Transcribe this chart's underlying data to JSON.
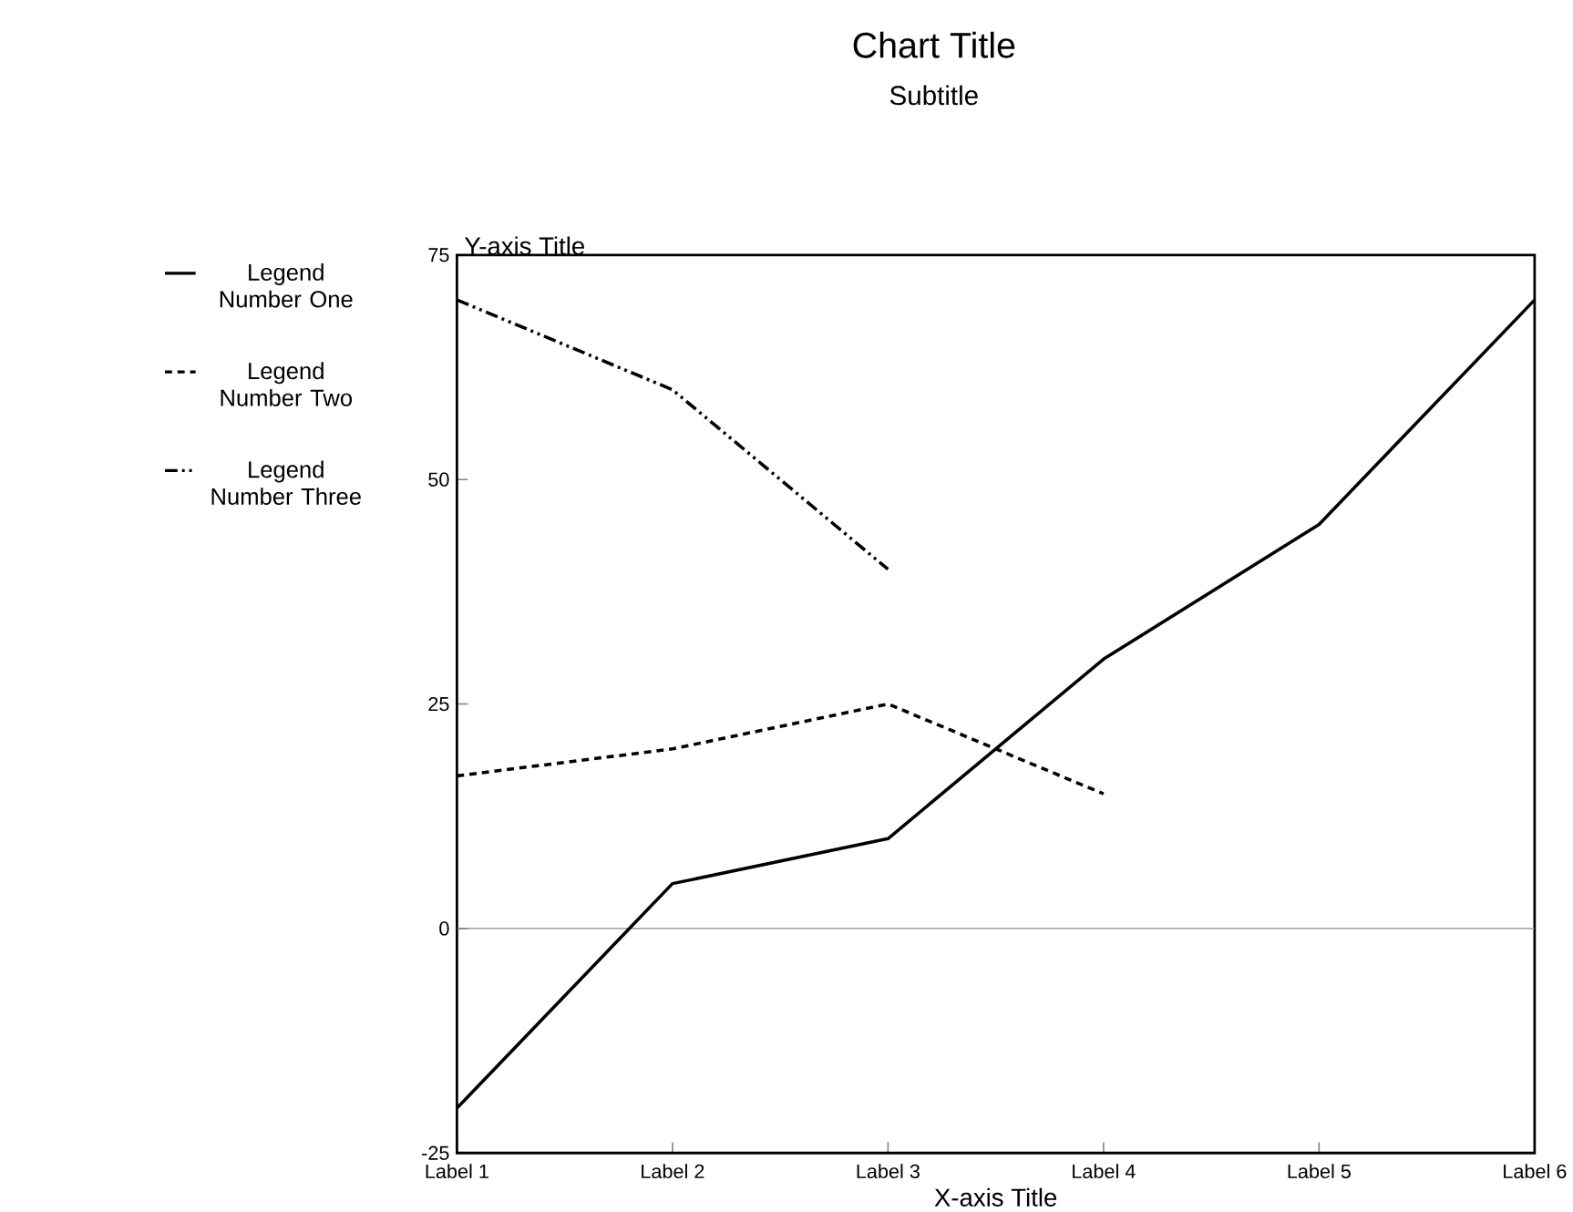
{
  "chart_data": {
    "type": "line",
    "title": "Chart Title",
    "subtitle": "Subtitle",
    "xlabel": "X-axis Title",
    "ylabel": "Y-axis Title",
    "categories": [
      "Label 1",
      "Label 2",
      "Label 3",
      "Label 4",
      "Label 5",
      "Label 6"
    ],
    "series": [
      {
        "name": "Legend Number One",
        "color": "#000000",
        "line_style": "solid",
        "values": [
          -20,
          5,
          10,
          30,
          45,
          70
        ]
      },
      {
        "name": "Legend Number Two",
        "color": "#000000",
        "line_style": "dashed",
        "values": [
          17,
          20,
          25,
          15,
          null,
          null
        ]
      },
      {
        "name": "Legend Number Three",
        "color": "#000000",
        "line_style": "dashdot",
        "values": [
          70,
          60,
          40,
          null,
          null,
          null
        ]
      }
    ],
    "ylim": [
      -25,
      75
    ],
    "yticks": [
      -25,
      0,
      25,
      50,
      75
    ],
    "ref_lines": [
      {
        "axis": "y",
        "value": 0,
        "color": "#888888"
      }
    ],
    "legend": "left",
    "marker": "none"
  }
}
